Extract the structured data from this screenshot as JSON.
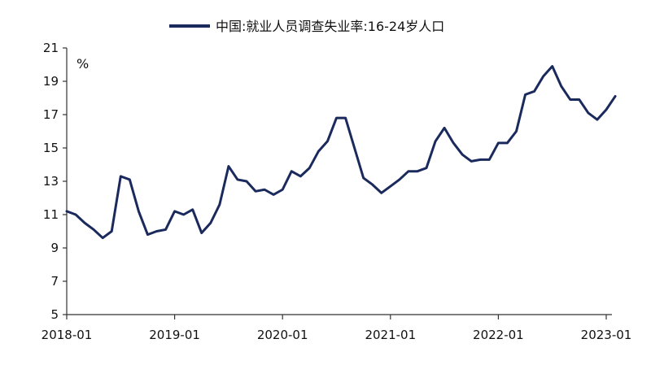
{
  "chart_data": {
    "type": "line",
    "title": "",
    "xlabel": "",
    "ylabel": "%",
    "ylim": [
      5,
      21
    ],
    "yticks": [
      5,
      7,
      9,
      11,
      13,
      15,
      17,
      19,
      21
    ],
    "xticks": [
      "2018-01",
      "2019-01",
      "2020-01",
      "2021-01",
      "2022-01",
      "2023-01"
    ],
    "grid": false,
    "legend": "top-center",
    "series": [
      {
        "name": "中国:就业人员调查失业率:16-24岁人口",
        "color": "#1b2a5c",
        "x": [
          "2018-01",
          "2018-02",
          "2018-03",
          "2018-04",
          "2018-05",
          "2018-06",
          "2018-07",
          "2018-08",
          "2018-09",
          "2018-10",
          "2018-11",
          "2018-12",
          "2019-01",
          "2019-02",
          "2019-03",
          "2019-04",
          "2019-05",
          "2019-06",
          "2019-07",
          "2019-08",
          "2019-09",
          "2019-10",
          "2019-11",
          "2019-12",
          "2020-01",
          "2020-02",
          "2020-03",
          "2020-04",
          "2020-05",
          "2020-06",
          "2020-07",
          "2020-08",
          "2020-09",
          "2020-10",
          "2020-11",
          "2020-12",
          "2021-01",
          "2021-02",
          "2021-03",
          "2021-04",
          "2021-05",
          "2021-06",
          "2021-07",
          "2021-08",
          "2021-09",
          "2021-10",
          "2021-11",
          "2021-12",
          "2022-01",
          "2022-02",
          "2022-03",
          "2022-04",
          "2022-05",
          "2022-06",
          "2022-07",
          "2022-08",
          "2022-09",
          "2022-10",
          "2022-11",
          "2022-12",
          "2023-01",
          "2023-02"
        ],
        "values": [
          11.2,
          11.0,
          10.5,
          10.1,
          9.6,
          10.0,
          13.3,
          13.1,
          11.2,
          9.8,
          10.0,
          10.1,
          11.2,
          11.0,
          11.3,
          9.9,
          10.5,
          11.6,
          13.9,
          13.1,
          13.0,
          12.4,
          12.5,
          12.2,
          12.5,
          13.6,
          13.3,
          13.8,
          14.8,
          15.4,
          16.8,
          16.8,
          15.0,
          13.2,
          12.8,
          12.3,
          12.7,
          13.1,
          13.6,
          13.6,
          13.8,
          15.4,
          16.2,
          15.3,
          14.6,
          14.2,
          14.3,
          14.3,
          15.3,
          15.3,
          16.0,
          18.2,
          18.4,
          19.3,
          19.9,
          18.7,
          17.9,
          17.9,
          17.1,
          16.7,
          17.3,
          18.1
        ]
      }
    ]
  }
}
